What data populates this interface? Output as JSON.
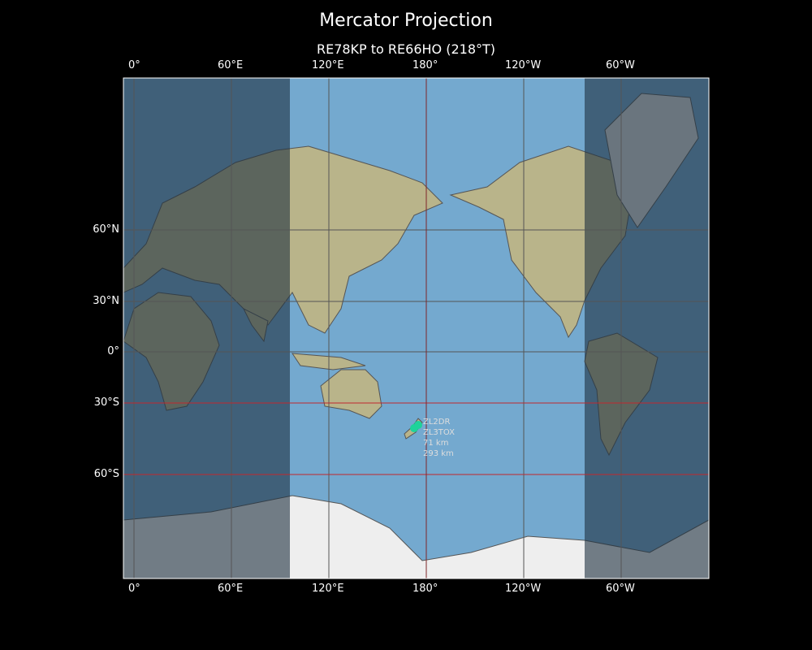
{
  "title": "Mercator Projection",
  "subtitle": "RE78KP to RE66HO (218°T)",
  "x_ticks": [
    "0°",
    "60°E",
    "120°E",
    "180°",
    "120°W",
    "60°W"
  ],
  "y_ticks": [
    "60°N",
    "30°N",
    "0°",
    "30°S",
    "60°S"
  ],
  "stations": [
    {
      "label": "ZL2DR",
      "distance": "71 km"
    },
    {
      "label": "ZL3TOX",
      "distance": "293 km"
    }
  ],
  "colors": {
    "ocean": "#74a9cf",
    "night_shade": "#1e3040",
    "marker": "#1fd39a",
    "highlight_line": "#c0282d",
    "grid": "#555555"
  }
}
